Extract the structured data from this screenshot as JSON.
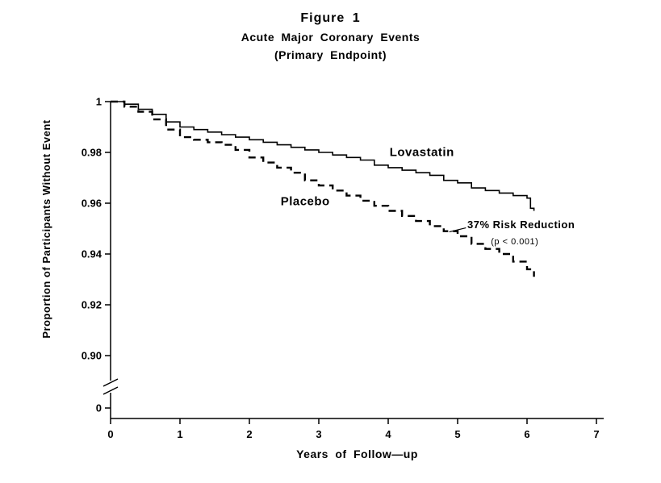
{
  "figure": {
    "title": "Figure 1",
    "subtitle1": "Acute Major Coronary Events",
    "subtitle2": "(Primary Endpoint)"
  },
  "chart_data": {
    "type": "line",
    "title": "Figure 1",
    "subtitle": "Acute Major Coronary Events (Primary Endpoint)",
    "xlabel": "Years of Follow—up",
    "ylabel": "Proportion of Participants Without Event",
    "xlim": [
      0,
      7
    ],
    "ylim_main": [
      0.89,
      1.0
    ],
    "grid": false,
    "legend": "inline-labels",
    "y_axis_break": true,
    "x_ticks": [
      {
        "v": 0,
        "label": "0"
      },
      {
        "v": 1,
        "label": "1"
      },
      {
        "v": 2,
        "label": "2"
      },
      {
        "v": 3,
        "label": "3"
      },
      {
        "v": 4,
        "label": "4"
      },
      {
        "v": 5,
        "label": "5"
      },
      {
        "v": 6,
        "label": "6"
      },
      {
        "v": 7,
        "label": "7"
      }
    ],
    "y_ticks": [
      {
        "v": 1.0,
        "label": "1"
      },
      {
        "v": 0.98,
        "label": "0.98"
      },
      {
        "v": 0.96,
        "label": "0.96"
      },
      {
        "v": 0.94,
        "label": "0.94"
      },
      {
        "v": 0.92,
        "label": "0.92"
      },
      {
        "v": 0.9,
        "label": "0.90"
      }
    ],
    "y_zero_tick": {
      "v": 0,
      "label": "0"
    },
    "series": [
      {
        "name": "Lovastatin",
        "style": "solid",
        "color": "#000000",
        "points": [
          [
            0,
            1.0
          ],
          [
            0.2,
            0.999
          ],
          [
            0.4,
            0.997
          ],
          [
            0.6,
            0.995
          ],
          [
            0.8,
            0.992
          ],
          [
            1.0,
            0.99
          ],
          [
            1.2,
            0.989
          ],
          [
            1.4,
            0.988
          ],
          [
            1.6,
            0.987
          ],
          [
            1.8,
            0.986
          ],
          [
            2.0,
            0.985
          ],
          [
            2.2,
            0.984
          ],
          [
            2.4,
            0.983
          ],
          [
            2.6,
            0.982
          ],
          [
            2.8,
            0.981
          ],
          [
            3.0,
            0.98
          ],
          [
            3.2,
            0.979
          ],
          [
            3.4,
            0.978
          ],
          [
            3.6,
            0.977
          ],
          [
            3.8,
            0.975
          ],
          [
            4.0,
            0.974
          ],
          [
            4.2,
            0.973
          ],
          [
            4.4,
            0.972
          ],
          [
            4.6,
            0.971
          ],
          [
            4.8,
            0.969
          ],
          [
            5.0,
            0.968
          ],
          [
            5.2,
            0.966
          ],
          [
            5.4,
            0.965
          ],
          [
            5.6,
            0.964
          ],
          [
            5.8,
            0.963
          ],
          [
            6.0,
            0.962
          ],
          [
            6.05,
            0.958
          ],
          [
            6.1,
            0.957
          ]
        ]
      },
      {
        "name": "Placebo",
        "style": "dashed",
        "color": "#000000",
        "points": [
          [
            0,
            1.0
          ],
          [
            0.2,
            0.998
          ],
          [
            0.4,
            0.996
          ],
          [
            0.6,
            0.993
          ],
          [
            0.8,
            0.989
          ],
          [
            1.0,
            0.986
          ],
          [
            1.2,
            0.985
          ],
          [
            1.4,
            0.984
          ],
          [
            1.6,
            0.983
          ],
          [
            1.8,
            0.981
          ],
          [
            2.0,
            0.978
          ],
          [
            2.2,
            0.976
          ],
          [
            2.4,
            0.974
          ],
          [
            2.6,
            0.972
          ],
          [
            2.8,
            0.969
          ],
          [
            3.0,
            0.967
          ],
          [
            3.2,
            0.965
          ],
          [
            3.4,
            0.963
          ],
          [
            3.6,
            0.961
          ],
          [
            3.8,
            0.959
          ],
          [
            4.0,
            0.957
          ],
          [
            4.2,
            0.955
          ],
          [
            4.4,
            0.953
          ],
          [
            4.6,
            0.951
          ],
          [
            4.8,
            0.949
          ],
          [
            5.0,
            0.947
          ],
          [
            5.2,
            0.944
          ],
          [
            5.4,
            0.942
          ],
          [
            5.6,
            0.94
          ],
          [
            5.8,
            0.937
          ],
          [
            6.0,
            0.934
          ],
          [
            6.1,
            0.931
          ]
        ]
      }
    ],
    "annotations": [
      {
        "text": "Lovastatin",
        "x": 4.02,
        "y": 0.9785,
        "bold": true,
        "size": 15
      },
      {
        "text": "Placebo",
        "x": 2.45,
        "y": 0.9592,
        "bold": true,
        "size": 15
      },
      {
        "text": "37% Risk Reduction",
        "x": 5.14,
        "y": 0.9502,
        "bold": true,
        "size": 13
      },
      {
        "text": "(p < 0.001)",
        "x": 5.48,
        "y": 0.9438,
        "bold": false,
        "size": 11
      }
    ],
    "leader_line": {
      "x1": 4.88,
      "y1": 0.9487,
      "x2": 5.12,
      "y2": 0.9503
    }
  }
}
